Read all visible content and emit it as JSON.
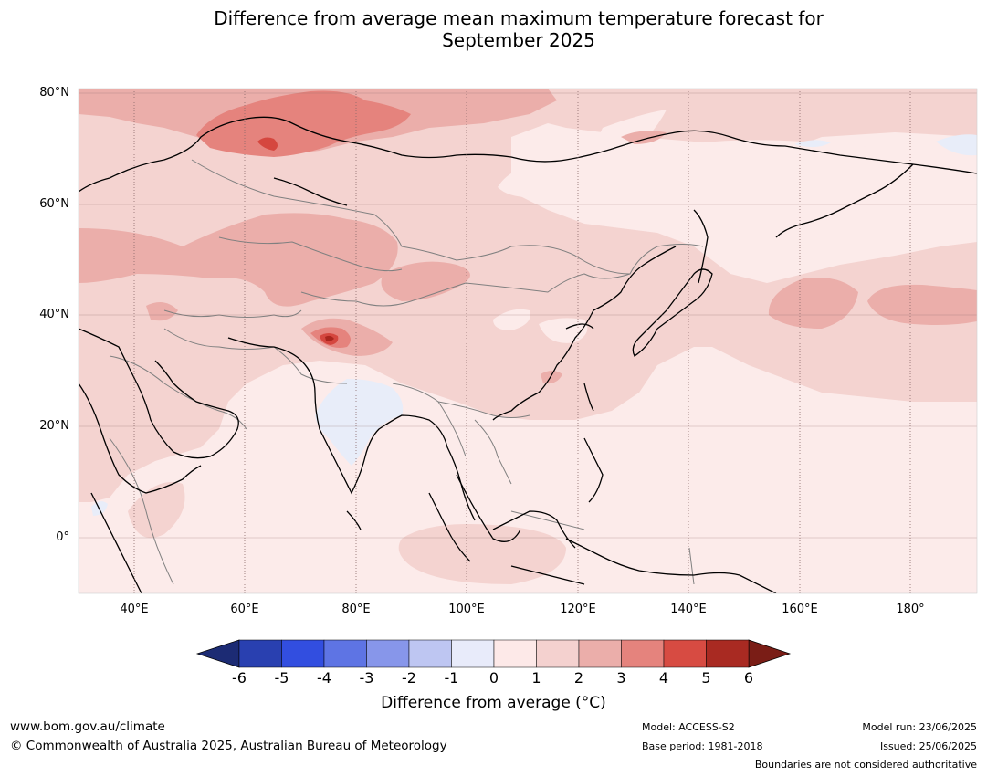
{
  "title": {
    "line1": "Difference from average mean maximum temperature forecast for",
    "line2": "September 2025"
  },
  "map": {
    "lat_labels": [
      "80°N",
      "60°N",
      "40°N",
      "20°N",
      "0°"
    ],
    "lon_labels": [
      "40°E",
      "60°E",
      "80°E",
      "100°E",
      "120°E",
      "140°E",
      "160°E",
      "180°"
    ],
    "colors": {
      "ocean_default": "#fcebea",
      "slight_warm": "#f4d3d0",
      "warm": "#ebaeaa",
      "warmer": "#e5837d",
      "hot": "#d5473f",
      "very_hot": "#a9261e",
      "slight_cool": "#e8edf9",
      "coast": "#000000",
      "border": "#808080",
      "grid": "#8a6a6a"
    }
  },
  "colorbar": {
    "ticks": [
      "-6",
      "-5",
      "-4",
      "-3",
      "-2",
      "-1",
      "0",
      "1",
      "2",
      "3",
      "4",
      "5",
      "6"
    ],
    "colors": [
      "#1c2b74",
      "#2940b0",
      "#324ee0",
      "#5e74e4",
      "#8796ea",
      "#bec6f2",
      "#e8ebfa",
      "#fde9e8",
      "#f4d1cf",
      "#ebaeaa",
      "#e5837d",
      "#d74b42",
      "#a92a22",
      "#7a1d16"
    ],
    "label": "Difference from average (°C)"
  },
  "footer": {
    "website": "www.bom.gov.au/climate",
    "copyright": "© Commonwealth of Australia 2025, Australian Bureau of Meteorology",
    "model": "Model: ACCESS-S2",
    "base_period": "Base period: 1981-2018",
    "model_run": "Model run: 23/06/2025",
    "issued": "Issued: 25/06/2025",
    "disclaimer": "Boundaries are not considered authoritative"
  }
}
